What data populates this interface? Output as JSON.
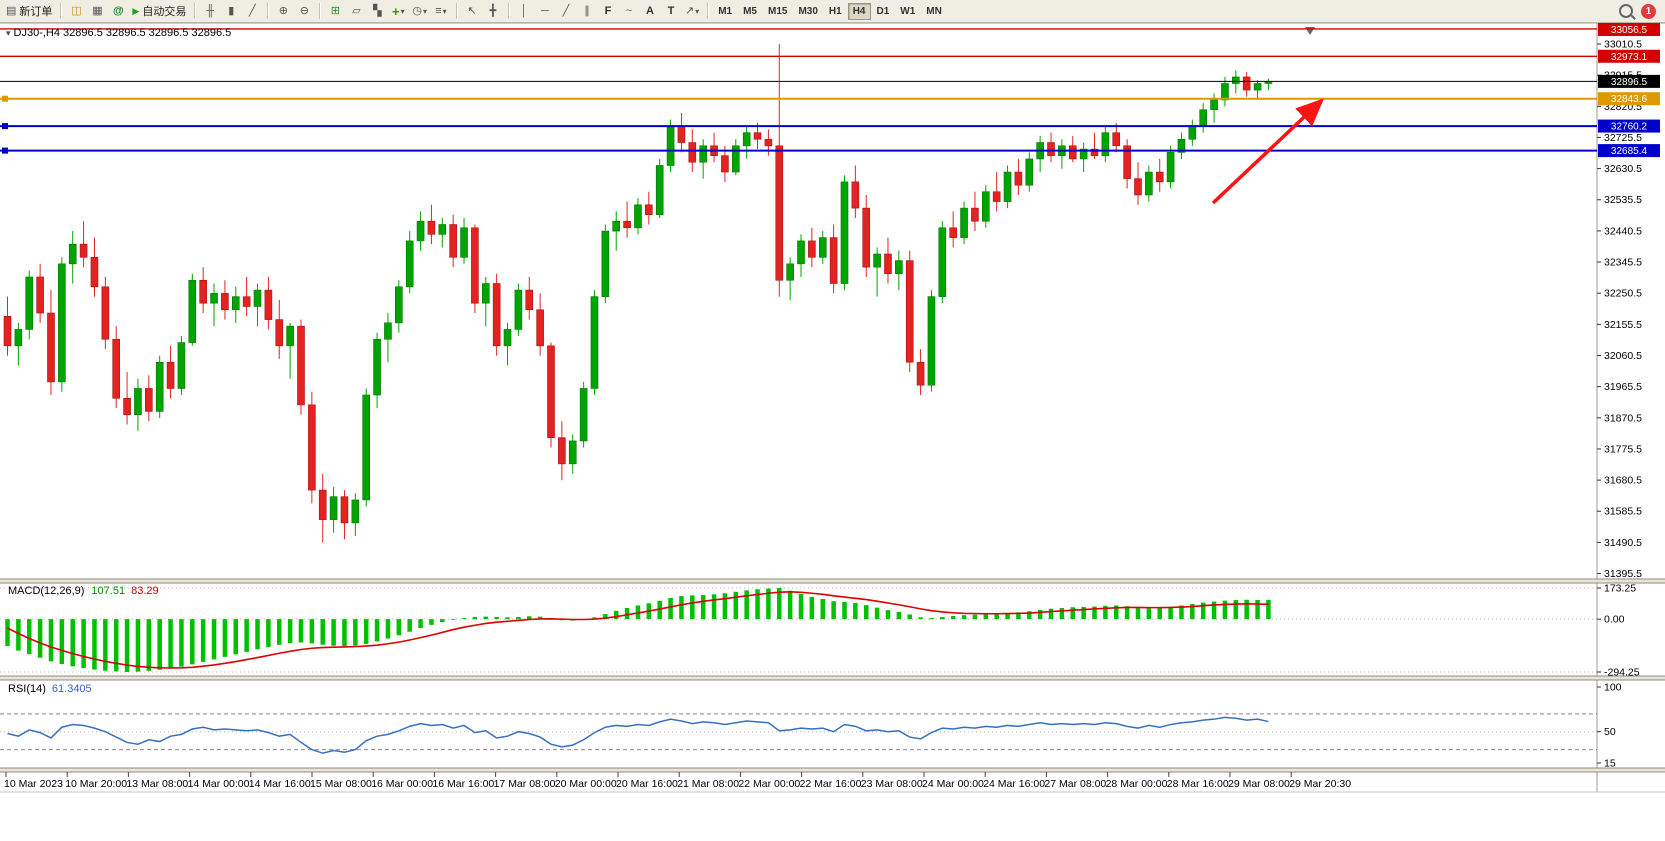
{
  "toolbar": {
    "notification_count": "1",
    "active_timeframe": "H4",
    "timeframes": [
      "M1",
      "M5",
      "M15",
      "M30",
      "H1",
      "H4",
      "D1",
      "W1",
      "MN"
    ],
    "items": [
      {
        "type": "btn",
        "name": "new-order-button",
        "icon": "new-order-icon",
        "label": "新订单"
      },
      {
        "type": "sep"
      },
      {
        "type": "btn",
        "name": "market-watch-button",
        "icon": "market-watch-icon"
      },
      {
        "type": "btn",
        "name": "data-window-button",
        "icon": "data-window-icon"
      },
      {
        "type": "btn",
        "name": "navigator-button",
        "icon": "navigator-icon"
      },
      {
        "type": "btn",
        "name": "auto-trading-button",
        "icon": "play-icon",
        "label": "自动交易"
      },
      {
        "type": "sep"
      },
      {
        "type": "btn",
        "name": "chart-bars-button",
        "icon": "bar-chart-icon"
      },
      {
        "type": "btn",
        "name": "chart-candles-button",
        "icon": "candlestick-icon"
      },
      {
        "type": "btn",
        "name": "chart-line-button",
        "icon": "line-chart-icon"
      },
      {
        "type": "sep"
      },
      {
        "type": "btn",
        "name": "zoom-in-button",
        "icon": "zoom-in-icon"
      },
      {
        "type": "btn",
        "name": "zoom-out-button",
        "icon": "zoom-out-icon"
      },
      {
        "type": "sep"
      },
      {
        "type": "btn",
        "name": "tile-windows-button",
        "icon": "tile-windows-icon"
      },
      {
        "type": "btn",
        "name": "cascade-windows-button",
        "icon": "cascade-icon"
      },
      {
        "type": "btn",
        "name": "arrange-windows-button",
        "icon": "arrange-icon"
      },
      {
        "type": "btn",
        "name": "new-chart-button",
        "icon": "new-chart-icon",
        "dropdown": true
      },
      {
        "type": "btn",
        "name": "periods-button",
        "icon": "clock-icon",
        "dropdown": true
      },
      {
        "type": "btn",
        "name": "indicators-button",
        "icon": "indicators-icon",
        "dropdown": true
      },
      {
        "type": "sep"
      },
      {
        "type": "btn",
        "name": "cursor-button",
        "icon": "cursor-icon"
      },
      {
        "type": "btn",
        "name": "crosshair-button",
        "icon": "crosshair-icon"
      },
      {
        "type": "sep"
      },
      {
        "type": "btn",
        "name": "vertical-line-button",
        "icon": "vertical-line-icon"
      },
      {
        "type": "btn",
        "name": "horizontal-line-button",
        "icon": "horizontal-line-icon"
      },
      {
        "type": "btn",
        "name": "trendline-button",
        "icon": "trendline-icon"
      },
      {
        "type": "btn",
        "name": "channel-button",
        "icon": "channel-icon"
      },
      {
        "type": "btn",
        "name": "fibonacci-button",
        "icon": "fibonacci-icon"
      },
      {
        "type": "btn",
        "name": "wave-button",
        "icon": "wave-icon"
      },
      {
        "type": "btn",
        "name": "text-button",
        "icon": "text-icon"
      },
      {
        "type": "btn",
        "name": "text-label-button",
        "icon": "text-label-icon"
      },
      {
        "type": "btn",
        "name": "shapes-button",
        "icon": "arrow-shape-icon",
        "dropdown": true
      },
      {
        "type": "sep"
      }
    ]
  },
  "chart": {
    "title_line": "DJ30-,H4  32896.5 32896.5 32896.5 32896.5",
    "symbol": "DJ30-",
    "period": "H4",
    "price_axis": [
      "33010.5",
      "32915.5",
      "32820.5",
      "32725.5",
      "32630.5",
      "32535.5",
      "32440.5",
      "32345.5",
      "32250.5",
      "32155.5",
      "32060.5",
      "31965.5",
      "31870.5",
      "31775.5",
      "31680.5",
      "31585.5",
      "31490.5",
      "31395.5"
    ],
    "time_axis": [
      "10 Mar 2023",
      "10 Mar 20:00",
      "13 Mar 08:00",
      "14 Mar 00:00",
      "14 Mar 16:00",
      "15 Mar 08:00",
      "16 Mar 00:00",
      "16 Mar 16:00",
      "17 Mar 08:00",
      "20 Mar 00:00",
      "20 Mar 16:00",
      "21 Mar 08:00",
      "22 Mar 00:00",
      "22 Mar 16:00",
      "23 Mar 08:00",
      "24 Mar 00:00",
      "24 Mar 16:00",
      "27 Mar 08:00",
      "28 Mar 00:00",
      "28 Mar 16:00",
      "29 Mar 08:00",
      "29 Mar 20:30"
    ],
    "hlines": [
      {
        "label": "33056.5",
        "price": 33056.5,
        "color": "#d40000",
        "width": 1.4
      },
      {
        "label": "32973.1",
        "price": 32973.1,
        "color": "#d40000",
        "width": 1.4
      },
      {
        "label": "32896.5",
        "price": 32896.5,
        "color": "#000000",
        "width": 1,
        "current": true
      },
      {
        "label": "32843.6",
        "price": 32843.6,
        "color": "#dc9a00",
        "width": 2,
        "handle": true
      },
      {
        "label": "32760.2",
        "price": 32760.2,
        "color": "#0000cd",
        "width": 2,
        "handle": true
      },
      {
        "label": "32685.4",
        "price": 32685.4,
        "color": "#0000cd",
        "width": 2,
        "handle": true
      }
    ]
  },
  "macd": {
    "label": "MACD(12,26,9)",
    "value_main": "107.51",
    "value_signal": "83.29",
    "axis": [
      "173.25",
      "0.00",
      "-294.25"
    ]
  },
  "rsi": {
    "label": "RSI(14)",
    "value": "61.3405",
    "axis": [
      "100",
      "50",
      "15"
    ],
    "levels_dashed": [
      70,
      30
    ],
    "levels_dotted": [
      50
    ]
  },
  "chart_data": {
    "type": "candlestick",
    "symbol": "DJ30-",
    "timeframe": "H4",
    "price_range": [
      31395.5,
      33010.5
    ],
    "colors": {
      "up": "#00a400",
      "down": "#e32222",
      "macd_histogram": "#00c000",
      "macd_signal": "#dd0000",
      "rsi_line": "#3670c0",
      "arrow": "#ff1212"
    },
    "candles": [
      [
        32180,
        32240,
        32060,
        32090
      ],
      [
        32090,
        32160,
        32030,
        32140
      ],
      [
        32140,
        32320,
        32110,
        32300
      ],
      [
        32300,
        32340,
        32160,
        32190
      ],
      [
        32190,
        32260,
        31940,
        31980
      ],
      [
        31980,
        32360,
        31950,
        32340
      ],
      [
        32340,
        32440,
        32280,
        32400
      ],
      [
        32400,
        32470,
        32330,
        32360
      ],
      [
        32360,
        32420,
        32240,
        32270
      ],
      [
        32270,
        32300,
        32080,
        32110
      ],
      [
        32110,
        32150,
        31900,
        31930
      ],
      [
        31930,
        32010,
        31850,
        31880
      ],
      [
        31880,
        31990,
        31830,
        31960
      ],
      [
        31960,
        32000,
        31860,
        31890
      ],
      [
        31890,
        32060,
        31870,
        32040
      ],
      [
        32040,
        32090,
        31930,
        31960
      ],
      [
        31960,
        32120,
        31940,
        32100
      ],
      [
        32100,
        32310,
        32090,
        32290
      ],
      [
        32290,
        32330,
        32190,
        32220
      ],
      [
        32220,
        32280,
        32150,
        32250
      ],
      [
        32250,
        32290,
        32170,
        32200
      ],
      [
        32200,
        32270,
        32160,
        32240
      ],
      [
        32240,
        32300,
        32180,
        32210
      ],
      [
        32210,
        32280,
        32150,
        32260
      ],
      [
        32260,
        32300,
        32140,
        32170
      ],
      [
        32170,
        32230,
        32050,
        32090
      ],
      [
        32090,
        32160,
        31990,
        32150
      ],
      [
        32150,
        32170,
        31880,
        31910
      ],
      [
        31910,
        31950,
        31610,
        31650
      ],
      [
        31650,
        31700,
        31490,
        31560
      ],
      [
        31560,
        31660,
        31520,
        31630
      ],
      [
        31630,
        31650,
        31500,
        31550
      ],
      [
        31550,
        31640,
        31510,
        31620
      ],
      [
        31620,
        31960,
        31600,
        31940
      ],
      [
        31940,
        32130,
        31900,
        32110
      ],
      [
        32110,
        32190,
        32040,
        32160
      ],
      [
        32160,
        32290,
        32130,
        32270
      ],
      [
        32270,
        32440,
        32250,
        32410
      ],
      [
        32410,
        32500,
        32380,
        32470
      ],
      [
        32470,
        32520,
        32400,
        32430
      ],
      [
        32430,
        32480,
        32390,
        32460
      ],
      [
        32460,
        32490,
        32330,
        32360
      ],
      [
        32360,
        32480,
        32340,
        32450
      ],
      [
        32450,
        32460,
        32190,
        32220
      ],
      [
        32220,
        32300,
        32150,
        32280
      ],
      [
        32280,
        32310,
        32060,
        32090
      ],
      [
        32090,
        32160,
        32030,
        32140
      ],
      [
        32140,
        32280,
        32120,
        32260
      ],
      [
        32260,
        32300,
        32170,
        32200
      ],
      [
        32200,
        32250,
        32060,
        32090
      ],
      [
        32090,
        32100,
        31780,
        31810
      ],
      [
        31810,
        31860,
        31680,
        31730
      ],
      [
        31730,
        31820,
        31700,
        31800
      ],
      [
        31800,
        31980,
        31780,
        31960
      ],
      [
        31960,
        32260,
        31940,
        32240
      ],
      [
        32240,
        32460,
        32220,
        32440
      ],
      [
        32440,
        32500,
        32380,
        32470
      ],
      [
        32470,
        32530,
        32420,
        32450
      ],
      [
        32450,
        32540,
        32430,
        32520
      ],
      [
        32520,
        32560,
        32460,
        32490
      ],
      [
        32490,
        32660,
        32480,
        32640
      ],
      [
        32640,
        32780,
        32620,
        32760
      ],
      [
        32760,
        32800,
        32680,
        32710
      ],
      [
        32710,
        32750,
        32620,
        32650
      ],
      [
        32650,
        32720,
        32600,
        32700
      ],
      [
        32700,
        32740,
        32650,
        32670
      ],
      [
        32670,
        32700,
        32590,
        32620
      ],
      [
        32620,
        32720,
        32610,
        32700
      ],
      [
        32700,
        32760,
        32660,
        32740
      ],
      [
        32740,
        32770,
        32690,
        32720
      ],
      [
        32720,
        32750,
        32670,
        32700
      ],
      [
        32700,
        33010,
        32240,
        32290
      ],
      [
        32290,
        32360,
        32230,
        32340
      ],
      [
        32340,
        32430,
        32300,
        32410
      ],
      [
        32410,
        32450,
        32330,
        32360
      ],
      [
        32360,
        32440,
        32340,
        32420
      ],
      [
        32420,
        32460,
        32250,
        32280
      ],
      [
        32280,
        32610,
        32260,
        32590
      ],
      [
        32590,
        32640,
        32480,
        32510
      ],
      [
        32510,
        32550,
        32300,
        32330
      ],
      [
        32330,
        32390,
        32240,
        32370
      ],
      [
        32370,
        32420,
        32280,
        32310
      ],
      [
        32310,
        32380,
        32260,
        32350
      ],
      [
        32350,
        32380,
        32010,
        32040
      ],
      [
        32040,
        32080,
        31940,
        31970
      ],
      [
        31970,
        32260,
        31950,
        32240
      ],
      [
        32240,
        32470,
        32220,
        32450
      ],
      [
        32450,
        32500,
        32390,
        32420
      ],
      [
        32420,
        32530,
        32400,
        32510
      ],
      [
        32510,
        32560,
        32440,
        32470
      ],
      [
        32470,
        32580,
        32450,
        32560
      ],
      [
        32560,
        32620,
        32500,
        32530
      ],
      [
        32530,
        32640,
        32510,
        32620
      ],
      [
        32620,
        32660,
        32550,
        32580
      ],
      [
        32580,
        32680,
        32560,
        32660
      ],
      [
        32660,
        32730,
        32620,
        32710
      ],
      [
        32710,
        32740,
        32650,
        32670
      ],
      [
        32670,
        32720,
        32630,
        32700
      ],
      [
        32700,
        32730,
        32650,
        32660
      ],
      [
        32660,
        32710,
        32620,
        32690
      ],
      [
        32690,
        32740,
        32660,
        32670
      ],
      [
        32670,
        32760,
        32650,
        32740
      ],
      [
        32740,
        32770,
        32680,
        32700
      ],
      [
        32700,
        32720,
        32570,
        32600
      ],
      [
        32600,
        32650,
        32520,
        32550
      ],
      [
        32550,
        32640,
        32530,
        32620
      ],
      [
        32620,
        32660,
        32560,
        32590
      ],
      [
        32590,
        32700,
        32570,
        32680
      ],
      [
        32680,
        32740,
        32660,
        32720
      ],
      [
        32720,
        32780,
        32700,
        32760
      ],
      [
        32760,
        32830,
        32740,
        32810
      ],
      [
        32810,
        32860,
        32770,
        32840
      ],
      [
        32840,
        32910,
        32820,
        32890
      ],
      [
        32890,
        32930,
        32860,
        32910
      ],
      [
        32910,
        32925,
        32850,
        32870
      ],
      [
        32870,
        32900,
        32840,
        32890
      ],
      [
        32890,
        32905,
        32870,
        32896.5
      ]
    ],
    "macd_histogram": [
      -150,
      -175,
      -195,
      -215,
      -235,
      -250,
      -262,
      -272,
      -280,
      -287,
      -291,
      -294,
      -292,
      -288,
      -282,
      -274,
      -264,
      -252,
      -238,
      -224,
      -210,
      -196,
      -182,
      -168,
      -155,
      -143,
      -133,
      -130,
      -135,
      -142,
      -148,
      -150,
      -147,
      -138,
      -124,
      -108,
      -90,
      -70,
      -50,
      -32,
      -16,
      -4,
      6,
      12,
      14,
      12,
      10,
      12,
      16,
      14,
      4,
      -6,
      -8,
      -2,
      10,
      28,
      46,
      62,
      76,
      88,
      102,
      118,
      128,
      132,
      134,
      138,
      144,
      152,
      160,
      166,
      170,
      173,
      158,
      140,
      124,
      112,
      100,
      96,
      90,
      78,
      64,
      50,
      40,
      26,
      10,
      6,
      12,
      18,
      22,
      24,
      28,
      30,
      34,
      38,
      44,
      52,
      58,
      62,
      66,
      68,
      70,
      74,
      76,
      72,
      64,
      60,
      62,
      68,
      76,
      84,
      92,
      98,
      103,
      106,
      108,
      107,
      107.51
    ],
    "macd_signal": [
      -50,
      -80,
      -108,
      -133,
      -155,
      -174,
      -192,
      -208,
      -222,
      -235,
      -246,
      -256,
      -263,
      -268,
      -271,
      -272,
      -271,
      -268,
      -262,
      -255,
      -246,
      -236,
      -225,
      -214,
      -202,
      -190,
      -179,
      -169,
      -162,
      -158,
      -156,
      -155,
      -153,
      -150,
      -145,
      -137,
      -128,
      -116,
      -103,
      -89,
      -74,
      -58,
      -45,
      -34,
      -24,
      -17,
      -12,
      -7,
      -2,
      1,
      2,
      0,
      -2,
      -2,
      0,
      6,
      14,
      24,
      34,
      45,
      56,
      68,
      80,
      90,
      99,
      107,
      114,
      122,
      130,
      137,
      144,
      150,
      152,
      149,
      144,
      138,
      130,
      123,
      116,
      109,
      100,
      90,
      80,
      69,
      57,
      47,
      40,
      35,
      32,
      31,
      30,
      30,
      31,
      32,
      34,
      38,
      42,
      46,
      50,
      53,
      57,
      60,
      63,
      65,
      65,
      64,
      64,
      65,
      67,
      70,
      75,
      79,
      82,
      84,
      85,
      84,
      83.29
    ],
    "rsi": [
      48,
      45,
      52,
      49,
      43,
      55,
      58,
      57,
      54,
      50,
      44,
      38,
      36,
      41,
      39,
      45,
      47,
      53,
      55,
      52,
      53,
      52,
      51,
      52,
      49,
      45,
      47,
      38,
      30,
      26,
      29,
      27,
      30,
      40,
      45,
      47,
      51,
      56,
      59,
      57,
      58,
      54,
      57,
      49,
      51,
      43,
      45,
      50,
      48,
      44,
      36,
      33,
      35,
      41,
      49,
      55,
      57,
      56,
      58,
      57,
      61,
      64,
      62,
      59,
      61,
      60,
      58,
      60,
      62,
      61,
      60,
      51,
      52,
      54,
      53,
      54,
      50,
      58,
      56,
      51,
      52,
      50,
      51,
      44,
      42,
      49,
      54,
      53,
      55,
      54,
      56,
      55,
      57,
      56,
      58,
      60,
      58,
      59,
      58,
      59,
      58,
      60,
      59,
      56,
      54,
      57,
      55,
      58,
      60,
      61,
      63,
      64,
      66,
      65,
      63,
      64,
      61.34
    ]
  }
}
